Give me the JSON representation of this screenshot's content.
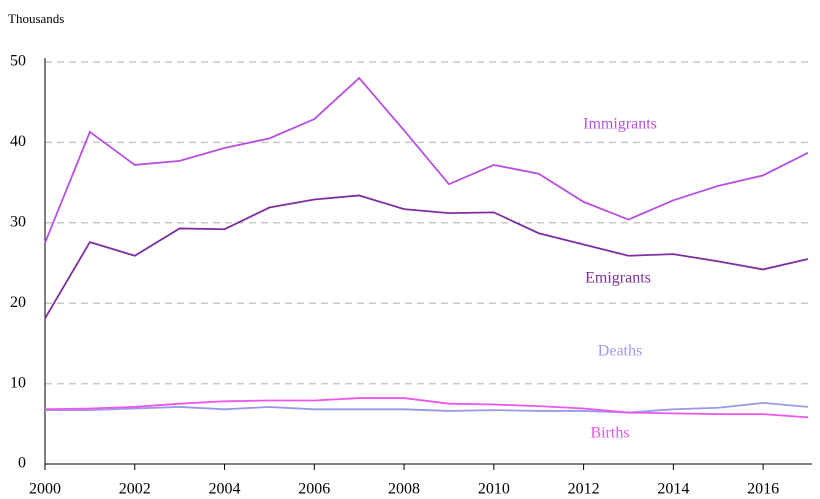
{
  "chart_data": {
    "type": "line",
    "ylabel": "Thousands",
    "x": [
      2000,
      2001,
      2002,
      2003,
      2004,
      2005,
      2006,
      2007,
      2008,
      2009,
      2010,
      2011,
      2012,
      2013,
      2014,
      2015,
      2016,
      2017
    ],
    "xlim": [
      2000,
      2017
    ],
    "xticks": [
      2000,
      2002,
      2004,
      2006,
      2008,
      2010,
      2012,
      2014,
      2016
    ],
    "ylim": [
      0,
      50
    ],
    "yticks": [
      0,
      10,
      20,
      30,
      40,
      50
    ],
    "grid": true,
    "series": [
      {
        "name": "Immigrants",
        "color": "#b84fe0",
        "values": [
          27.5,
          41.3,
          37.2,
          37.7,
          39.3,
          40.5,
          42.9,
          48,
          41.5,
          34.8,
          37.2,
          36.1,
          32.6,
          30.4,
          32.8,
          34.6,
          35.9,
          38.7
        ]
      },
      {
        "name": "Emigrants",
        "color": "#7b2fa0",
        "values": [
          18.1,
          27.6,
          25.9,
          29.3,
          29.2,
          31.9,
          32.9,
          33.4,
          31.7,
          31.2,
          31.3,
          28.7,
          27.3,
          25.9,
          26.1,
          25.2,
          24.2,
          25.5
        ]
      },
      {
        "name": "Deaths",
        "color": "#9a9ae8",
        "values": [
          6.7,
          6.7,
          6.9,
          7.1,
          6.8,
          7.1,
          6.8,
          6.8,
          6.8,
          6.6,
          6.7,
          6.6,
          6.6,
          6.4,
          6.8,
          7.0,
          7.6,
          7.1
        ]
      },
      {
        "name": "Births",
        "color": "#ee55ee",
        "values": [
          6.8,
          6.9,
          7.1,
          7.5,
          7.8,
          7.9,
          7.9,
          8.2,
          8.2,
          7.5,
          7.4,
          7.2,
          6.9,
          6.4,
          6.3,
          6.2,
          6.2,
          5.8
        ]
      }
    ]
  }
}
